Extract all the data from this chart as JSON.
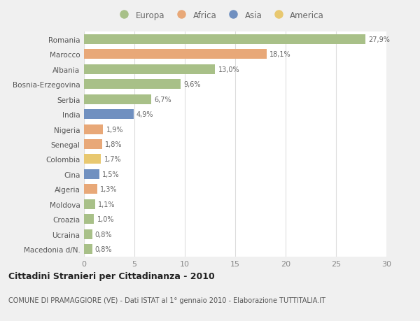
{
  "countries": [
    "Romania",
    "Marocco",
    "Albania",
    "Bosnia-Erzegovina",
    "Serbia",
    "India",
    "Nigeria",
    "Senegal",
    "Colombia",
    "Cina",
    "Algeria",
    "Moldova",
    "Croazia",
    "Ucraina",
    "Macedonia d/N."
  ],
  "values": [
    27.9,
    18.1,
    13.0,
    9.6,
    6.7,
    4.9,
    1.9,
    1.8,
    1.7,
    1.5,
    1.3,
    1.1,
    1.0,
    0.8,
    0.8
  ],
  "labels": [
    "27,9%",
    "18,1%",
    "13,0%",
    "9,6%",
    "6,7%",
    "4,9%",
    "1,9%",
    "1,8%",
    "1,7%",
    "1,5%",
    "1,3%",
    "1,1%",
    "1,0%",
    "0,8%",
    "0,8%"
  ],
  "continents": [
    "Europa",
    "Africa",
    "Europa",
    "Europa",
    "Europa",
    "Asia",
    "Africa",
    "Africa",
    "America",
    "Asia",
    "Africa",
    "Europa",
    "Europa",
    "Europa",
    "Europa"
  ],
  "colors": {
    "Europa": "#a8c088",
    "Africa": "#e8a878",
    "Asia": "#7090c0",
    "America": "#e8c870"
  },
  "legend_order": [
    "Europa",
    "Africa",
    "Asia",
    "America"
  ],
  "title": "Cittadini Stranieri per Cittadinanza - 2010",
  "subtitle": "COMUNE DI PRAMAGGIORE (VE) - Dati ISTAT al 1° gennaio 2010 - Elaborazione TUTTITALIA.IT",
  "xlim": [
    0,
    30
  ],
  "xticks": [
    0,
    5,
    10,
    15,
    20,
    25,
    30
  ],
  "background_color": "#f0f0f0",
  "plot_bg_color": "#ffffff",
  "grid_color": "#dddddd",
  "bar_height": 0.65
}
